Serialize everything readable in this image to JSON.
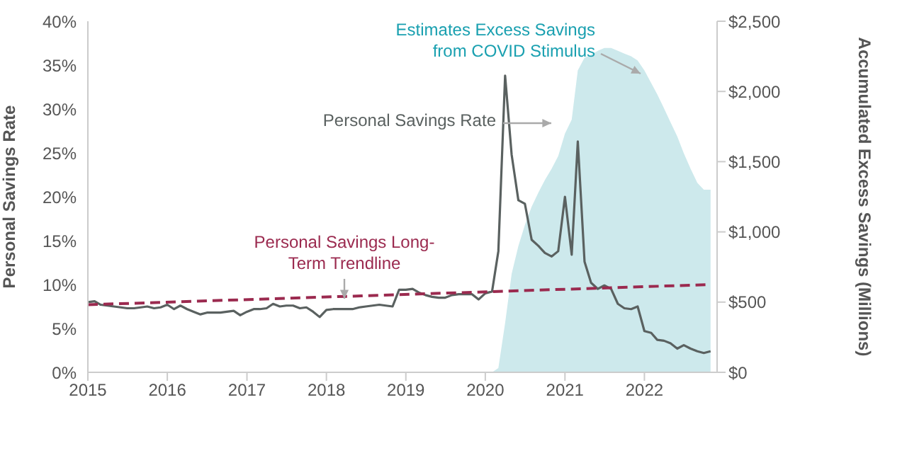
{
  "chart_data": {
    "type": "line",
    "ylabel": "Personal Savings Rate",
    "y2label": "Accumulated Excess Savings (Millions)",
    "xlim": [
      "2015",
      "2022-12"
    ],
    "xticks": [
      "2015",
      "2016",
      "2017",
      "2018",
      "2019",
      "2020",
      "2021",
      "2022"
    ],
    "ylim": [
      0,
      40
    ],
    "yticks": [
      {
        "value": 0,
        "label": "0%"
      },
      {
        "value": 5,
        "label": "5%"
      },
      {
        "value": 10,
        "label": "10%"
      },
      {
        "value": 15,
        "label": "15%"
      },
      {
        "value": 20,
        "label": "20%"
      },
      {
        "value": 25,
        "label": "25%"
      },
      {
        "value": 30,
        "label": "30%"
      },
      {
        "value": 35,
        "label": "35%"
      },
      {
        "value": 40,
        "label": "40%"
      }
    ],
    "y2lim": [
      0,
      2500
    ],
    "y2ticks": [
      {
        "value": 0,
        "label": "$0"
      },
      {
        "value": 500,
        "label": "$500"
      },
      {
        "value": 1000,
        "label": "$1,000"
      },
      {
        "value": 1500,
        "label": "$1,500"
      },
      {
        "value": 2000,
        "label": "$2,000"
      },
      {
        "value": 2500,
        "label": "$2,500"
      }
    ],
    "grid": false,
    "legend": false,
    "marker": "none",
    "series": [
      {
        "type": "area",
        "axis": "y2",
        "color": "#cde9ec",
        "x": [
          "2020-02",
          "2020-03",
          "2020-04",
          "2020-05",
          "2020-06",
          "2020-07",
          "2020-08",
          "2020-09",
          "2020-10",
          "2020-11",
          "2020-12",
          "2021-01",
          "2021-02",
          "2021-03",
          "2021-04",
          "2021-05",
          "2021-06",
          "2021-07",
          "2021-08",
          "2021-09",
          "2021-10",
          "2021-11",
          "2021-12",
          "2022-01",
          "2022-02",
          "2022-03",
          "2022-04",
          "2022-05",
          "2022-06",
          "2022-07",
          "2022-08",
          "2022-09",
          "2022-10",
          "2022-11"
        ],
        "values": [
          0,
          30,
          350,
          700,
          900,
          1050,
          1180,
          1280,
          1370,
          1450,
          1540,
          1700,
          1800,
          2150,
          2240,
          2260,
          2290,
          2310,
          2310,
          2290,
          2270,
          2250,
          2220,
          2150,
          2060,
          1980,
          1880,
          1780,
          1680,
          1560,
          1450,
          1350,
          1300,
          1300
        ]
      },
      {
        "color": "#5a6160",
        "line_style": "solid",
        "x": [
          "2015-01",
          "2015-02",
          "2015-03",
          "2015-04",
          "2015-05",
          "2015-06",
          "2015-07",
          "2015-08",
          "2015-09",
          "2015-10",
          "2015-11",
          "2015-12",
          "2016-01",
          "2016-02",
          "2016-03",
          "2016-04",
          "2016-05",
          "2016-06",
          "2016-07",
          "2016-08",
          "2016-09",
          "2016-10",
          "2016-11",
          "2016-12",
          "2017-01",
          "2017-02",
          "2017-03",
          "2017-04",
          "2017-05",
          "2017-06",
          "2017-07",
          "2017-08",
          "2017-09",
          "2017-10",
          "2017-11",
          "2017-12",
          "2018-01",
          "2018-02",
          "2018-03",
          "2018-04",
          "2018-05",
          "2018-06",
          "2018-07",
          "2018-08",
          "2018-09",
          "2018-10",
          "2018-11",
          "2018-12",
          "2019-01",
          "2019-02",
          "2019-03",
          "2019-04",
          "2019-05",
          "2019-06",
          "2019-07",
          "2019-08",
          "2019-09",
          "2019-10",
          "2019-11",
          "2019-12",
          "2020-01",
          "2020-02",
          "2020-03",
          "2020-04",
          "2020-05",
          "2020-06",
          "2020-07",
          "2020-08",
          "2020-09",
          "2020-10",
          "2020-11",
          "2020-12",
          "2021-01",
          "2021-02",
          "2021-03",
          "2021-04",
          "2021-05",
          "2021-06",
          "2021-07",
          "2021-08",
          "2021-09",
          "2021-10",
          "2021-11",
          "2021-12",
          "2022-01",
          "2022-02",
          "2022-03",
          "2022-04",
          "2022-05",
          "2022-06",
          "2022-07",
          "2022-08",
          "2022-09",
          "2022-10",
          "2022-11"
        ],
        "values": [
          8.0,
          8.1,
          7.7,
          7.6,
          7.5,
          7.4,
          7.3,
          7.3,
          7.4,
          7.5,
          7.3,
          7.4,
          7.7,
          7.2,
          7.6,
          7.2,
          6.9,
          6.6,
          6.8,
          6.8,
          6.8,
          6.9,
          7.0,
          6.5,
          6.9,
          7.2,
          7.2,
          7.3,
          7.8,
          7.5,
          7.6,
          7.6,
          7.3,
          7.4,
          6.9,
          6.3,
          7.1,
          7.2,
          7.2,
          7.2,
          7.2,
          7.4,
          7.5,
          7.6,
          7.7,
          7.6,
          7.5,
          9.4,
          9.4,
          9.5,
          9.1,
          8.8,
          8.6,
          8.5,
          8.5,
          8.8,
          8.9,
          8.9,
          8.9,
          8.3,
          9.0,
          9.2,
          13.8,
          33.8,
          24.8,
          19.6,
          19.2,
          15.1,
          14.4,
          13.6,
          13.2,
          13.8,
          20.0,
          13.4,
          26.3,
          12.6,
          10.2,
          9.5,
          9.9,
          9.5,
          7.8,
          7.3,
          7.2,
          7.5,
          4.7,
          4.5,
          3.7,
          3.6,
          3.3,
          2.7,
          3.1,
          2.7,
          2.4,
          2.2,
          2.4
        ]
      },
      {
        "type": "line",
        "color": "#9b2a4f",
        "line_style": "dashed",
        "x": [
          "2015-01",
          "2022-11"
        ],
        "values": [
          7.7,
          10.0
        ]
      }
    ],
    "annotations": [
      "Estimates Excess Savings from COVID Stimulus",
      "Personal Savings Rate",
      "Personal Savings Long-Term Trendline"
    ]
  }
}
